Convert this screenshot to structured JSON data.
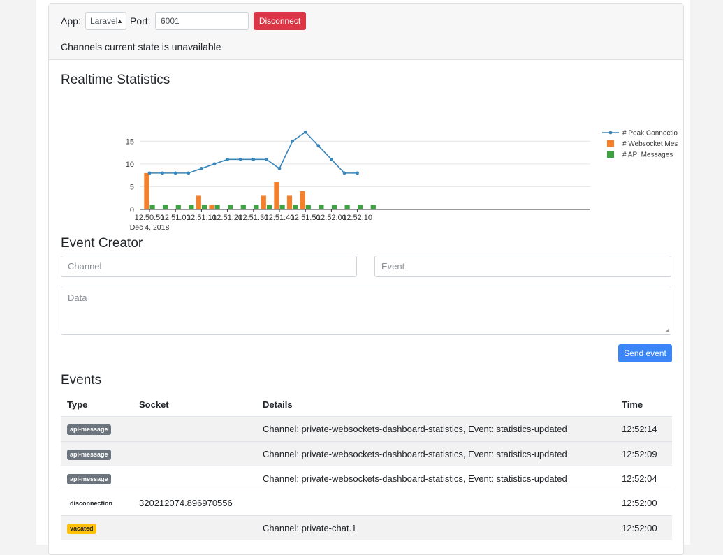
{
  "header": {
    "app_label": "App:",
    "app_value": "Laravel",
    "port_label": "Port:",
    "port_value": "6001",
    "disconnect_label": "Disconnect",
    "channels_state": "Channels current state is unavailable"
  },
  "stats": {
    "title": "Realtime Statistics"
  },
  "chart_data": {
    "type": "bar",
    "x_tick_labels": [
      "12:50:50",
      "12:51:00",
      "12:51:10",
      "12:51:20",
      "12:51:30",
      "12:51:40",
      "12:51:50",
      "12:52:00",
      "12:52:10"
    ],
    "x_sub_label": "Dec 4, 2018",
    "x": [
      "12:50:50",
      "12:50:55",
      "12:51:00",
      "12:51:05",
      "12:51:10",
      "12:51:15",
      "12:51:20",
      "12:51:25",
      "12:51:30",
      "12:51:35",
      "12:51:40",
      "12:51:45",
      "12:51:50",
      "12:51:55",
      "12:52:00",
      "12:52:05",
      "12:52:10",
      "12:52:15"
    ],
    "ylim": [
      0,
      17.5
    ],
    "y_ticks": [
      0,
      5,
      10,
      15
    ],
    "grid": true,
    "legend_position": "right",
    "series": [
      {
        "name": "# Peak Connections",
        "type": "line",
        "color": "#3a85b9",
        "values": [
          8,
          8,
          8,
          8,
          9,
          10,
          11,
          11,
          11,
          11,
          9,
          15,
          17,
          14,
          11,
          8,
          8,
          null
        ]
      },
      {
        "name": "# Websocket Messages",
        "type": "bar",
        "color": "#f5802b",
        "values": [
          8,
          0,
          0,
          0,
          3,
          1,
          0,
          0,
          0,
          3,
          6,
          3,
          4,
          0,
          0,
          0,
          0,
          0
        ]
      },
      {
        "name": "# API Messages",
        "type": "bar",
        "color": "#3ea142",
        "values": [
          1,
          1,
          1,
          1,
          1,
          1,
          1,
          1,
          1,
          1,
          1,
          1,
          1,
          1,
          1,
          1,
          1,
          1
        ]
      }
    ]
  },
  "event_creator": {
    "title": "Event Creator",
    "channel_placeholder": "Channel",
    "event_placeholder": "Event",
    "data_placeholder": "Data",
    "send_label": "Send event"
  },
  "events": {
    "title": "Events",
    "columns": [
      "Type",
      "Socket",
      "Details",
      "Time"
    ],
    "rows": [
      {
        "type": "api-message",
        "badge": "secondary",
        "socket": "",
        "details": "Channel: private-websockets-dashboard-statistics, Event: statistics-updated",
        "time": "12:52:14"
      },
      {
        "type": "api-message",
        "badge": "secondary",
        "socket": "",
        "details": "Channel: private-websockets-dashboard-statistics, Event: statistics-updated",
        "time": "12:52:09"
      },
      {
        "type": "api-message",
        "badge": "secondary",
        "socket": "",
        "details": "Channel: private-websockets-dashboard-statistics, Event: statistics-updated",
        "time": "12:52:04"
      },
      {
        "type": "disconnection",
        "badge": "light",
        "socket": "320212074.896970556",
        "details": "",
        "time": "12:52:00"
      },
      {
        "type": "vacated",
        "badge": "warning",
        "socket": "",
        "details": "Channel: private-chat.1",
        "time": "12:52:00"
      }
    ]
  }
}
